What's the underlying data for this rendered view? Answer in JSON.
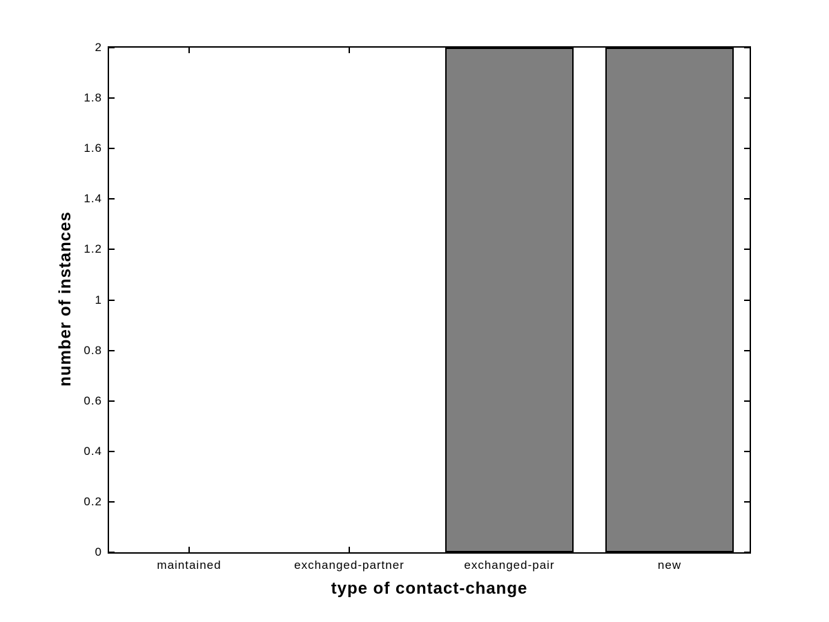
{
  "figure": {
    "background": "#ffffff"
  },
  "chart_data": {
    "type": "bar",
    "title": "",
    "xlabel": "type of contact-change",
    "ylabel": "number of instances",
    "categories": [
      "maintained",
      "exchanged-partner",
      "exchanged-pair",
      "new"
    ],
    "values": [
      0,
      0,
      2,
      2
    ],
    "ylim": [
      0,
      2
    ],
    "yticks": [
      {
        "value": 0,
        "label": "0"
      },
      {
        "value": 0.2,
        "label": "0.2"
      },
      {
        "value": 0.4,
        "label": "0.4"
      },
      {
        "value": 0.6,
        "label": "0.6"
      },
      {
        "value": 0.8,
        "label": "0.8"
      },
      {
        "value": 1,
        "label": "1"
      },
      {
        "value": 1.2,
        "label": "1.2"
      },
      {
        "value": 1.4,
        "label": "1.4"
      },
      {
        "value": 1.6,
        "label": "1.6"
      },
      {
        "value": 1.8,
        "label": "1.8"
      },
      {
        "value": 2,
        "label": "2"
      }
    ],
    "bar_width_fraction": 0.8,
    "grid": false,
    "legend": null,
    "colors": {
      "bar_fill": "#7f7f7f",
      "bar_edge": "#000000",
      "axis": "#000000",
      "text": "#000000",
      "background": "#ffffff"
    }
  }
}
